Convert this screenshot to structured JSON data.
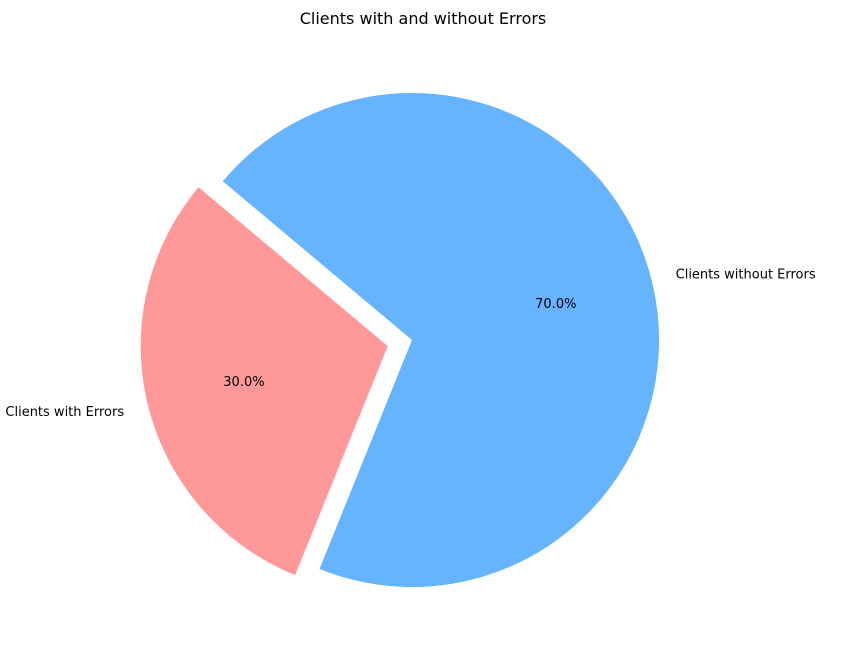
{
  "chart_data": {
    "type": "pie",
    "title": "Clients with and without Errors",
    "labels": [
      "Clients with Errors",
      "Clients without Errors"
    ],
    "values": [
      30.0,
      70.0
    ],
    "percent_labels": [
      "30.0%",
      "70.0%"
    ],
    "colors": [
      "#ff9999",
      "#66b3ff"
    ],
    "exploded": [
      true,
      false
    ],
    "start_angle_deg": 140,
    "direction": "counterclockwise",
    "legend": "none"
  }
}
